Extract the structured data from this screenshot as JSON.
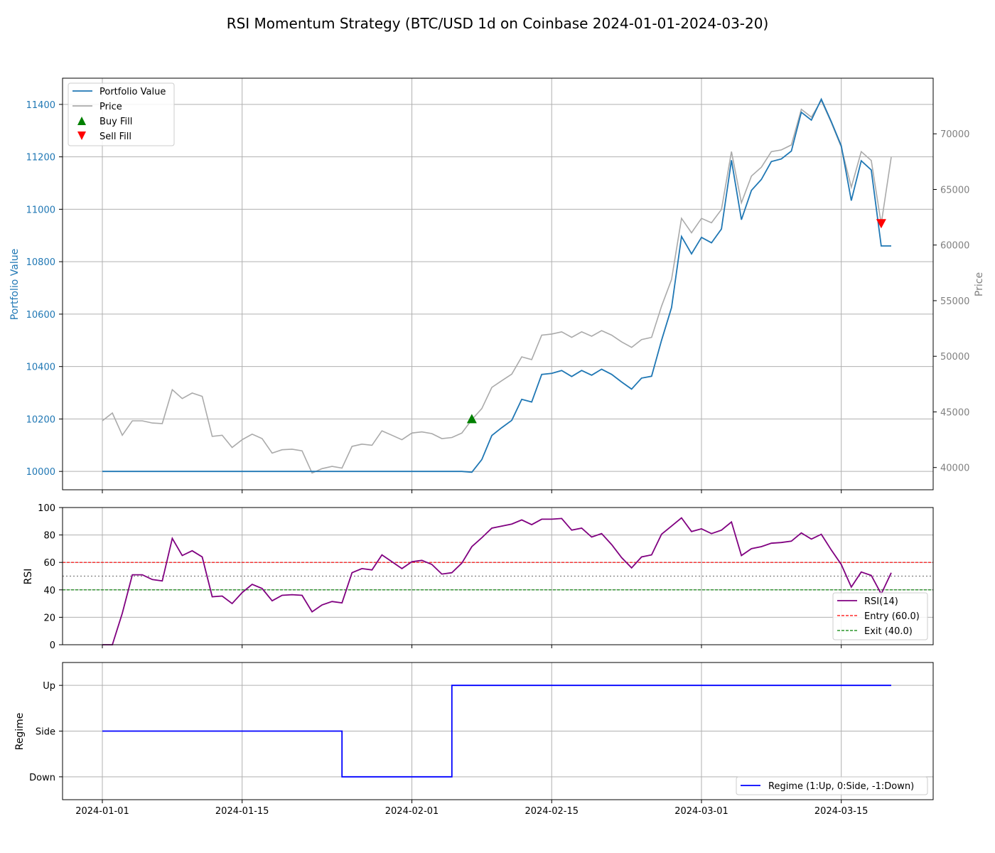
{
  "title": "RSI Momentum Strategy (BTC/USD 1d on Coinbase 2024-01-01-2024-03-20)",
  "colors": {
    "portfolio": "#1f77b4",
    "price": "#aaaaaa",
    "buy": "#008000",
    "sell": "#ff0000",
    "rsi": "#800080",
    "entry": "#ff0000",
    "exit": "#008000",
    "regime": "#0000ff",
    "grid": "#b0b0b0"
  },
  "chart_data": [
    {
      "type": "line",
      "panel": "price",
      "ylabel_left": "Portfolio Value",
      "ylabel_right": "Price",
      "ylim_left": [
        9930,
        11500
      ],
      "ylim_right": [
        38000,
        75000
      ],
      "yticks_left": [
        "10000",
        "10200",
        "10400",
        "10600",
        "10800",
        "11000",
        "11200",
        "11400"
      ],
      "yticks_right": [
        "40000",
        "45000",
        "50000",
        "55000",
        "60000",
        "65000",
        "70000"
      ],
      "grid": true,
      "legend_position": "upper-left",
      "legend": [
        "Portfolio Value",
        "Price",
        "Buy Fill",
        "Sell Fill"
      ],
      "x_start": "2024-01-01",
      "series": [
        {
          "name": "Portfolio Value",
          "axis": "left",
          "values": [
            10000,
            10000,
            10000,
            10000,
            10000,
            10000,
            10000,
            10000,
            10000,
            10000,
            10000,
            10000,
            10000,
            10000,
            10000,
            10000,
            10000,
            10000,
            10000,
            10000,
            10000,
            10000,
            10000,
            10000,
            10000,
            10000,
            10000,
            10000,
            10000,
            10000,
            10000,
            10000,
            10000,
            10000,
            10000,
            10000,
            10000,
            9997,
            10045,
            10137,
            10167,
            10195,
            10275,
            10265,
            10370,
            10374,
            10385,
            10362,
            10385,
            10367,
            10390,
            10370,
            10341,
            10314,
            10356,
            10363,
            10500,
            10625,
            10896,
            10830,
            10893,
            10872,
            10925,
            11187,
            10960,
            11072,
            11114,
            11182,
            11192,
            11222,
            11370,
            11340,
            11420,
            11334,
            11242,
            11033,
            11185,
            11150,
            10860,
            10860
          ]
        },
        {
          "name": "Price",
          "axis": "right",
          "values": [
            44200,
            44900,
            42900,
            44200,
            44200,
            44000,
            43950,
            47000,
            46200,
            46700,
            46400,
            42800,
            42900,
            41800,
            42500,
            43000,
            42600,
            41300,
            41600,
            41650,
            41500,
            39500,
            39900,
            40100,
            39950,
            41900,
            42100,
            42000,
            43300,
            42900,
            42500,
            43100,
            43200,
            43050,
            42600,
            42700,
            43100,
            44300,
            45300,
            47200,
            47800,
            48400,
            49950,
            49700,
            51900,
            52000,
            52200,
            51700,
            52200,
            51800,
            52300,
            51900,
            51300,
            50800,
            51500,
            51700,
            54500,
            56900,
            62400,
            61100,
            62400,
            62000,
            63200,
            68400,
            63800,
            66200,
            67000,
            68400,
            68550,
            69000,
            72200,
            71500,
            73000,
            71000,
            68800,
            65200,
            68400,
            67600,
            61900,
            67900
          ]
        }
      ],
      "markers": [
        {
          "name": "Buy Fill",
          "date": "2024-02-07",
          "value": 10200
        },
        {
          "name": "Sell Fill",
          "date": "2024-03-19",
          "value": 10946
        }
      ]
    },
    {
      "type": "line",
      "panel": "rsi",
      "ylabel": "RSI",
      "ylim": [
        0,
        100
      ],
      "yticks": [
        "0",
        "20",
        "40",
        "60",
        "80",
        "100"
      ],
      "grid": true,
      "legend_position": "lower-right",
      "legend": [
        "RSI(14)",
        "Entry (60.0)",
        "Exit (40.0)"
      ],
      "x_start": "2024-01-01",
      "series": [
        {
          "name": "RSI(14)",
          "values": [
            0,
            0,
            23,
            51,
            51,
            47.5,
            46.5,
            77.5,
            65,
            68.5,
            64,
            35,
            35.5,
            30,
            38,
            44,
            41,
            32,
            36,
            36.5,
            36,
            24,
            29,
            31.5,
            30.5,
            52.5,
            55.5,
            54.5,
            65.5,
            60.5,
            55.5,
            60.5,
            61.5,
            58.5,
            51.5,
            52.5,
            59.5,
            71.5,
            78,
            85,
            86.5,
            88,
            91,
            87.5,
            91.5,
            91.5,
            92,
            83.5,
            85,
            78.5,
            81,
            73,
            63.5,
            56,
            64,
            65.5,
            80.5,
            86.5,
            92.5,
            82.5,
            84.5,
            81,
            83.5,
            89.5,
            65,
            70,
            71.5,
            74,
            74.5,
            75.5,
            81.5,
            77,
            80.5,
            69,
            58.5,
            42,
            53,
            50.5,
            37,
            52.5
          ]
        }
      ],
      "lines": [
        {
          "name": "Entry (60.0)",
          "value": 60
        },
        {
          "name": "Exit (40.0)",
          "value": 40
        },
        {
          "name": "midline",
          "value": 50
        }
      ]
    },
    {
      "type": "line",
      "panel": "regime",
      "ylabel": "Regime",
      "ylim": [
        -1.5,
        1.5
      ],
      "yticks": [
        "Down",
        "Side",
        "Up"
      ],
      "grid": true,
      "legend_position": "lower-right",
      "legend": [
        "Regime (1:Up, 0:Side, -1:Down)"
      ],
      "x_start": "2024-01-01",
      "xticks": [
        "2024-01-01",
        "2024-01-15",
        "2024-02-01",
        "2024-02-15",
        "2024-03-01",
        "2024-03-15"
      ],
      "series": [
        {
          "name": "Regime (1:Up, 0:Side, -1:Down)",
          "steps": [
            {
              "from": "2024-01-01",
              "value": 0
            },
            {
              "from": "2024-01-25",
              "value": -1
            },
            {
              "from": "2024-02-05",
              "value": 1
            },
            {
              "to": "2024-03-20"
            }
          ]
        }
      ]
    }
  ]
}
